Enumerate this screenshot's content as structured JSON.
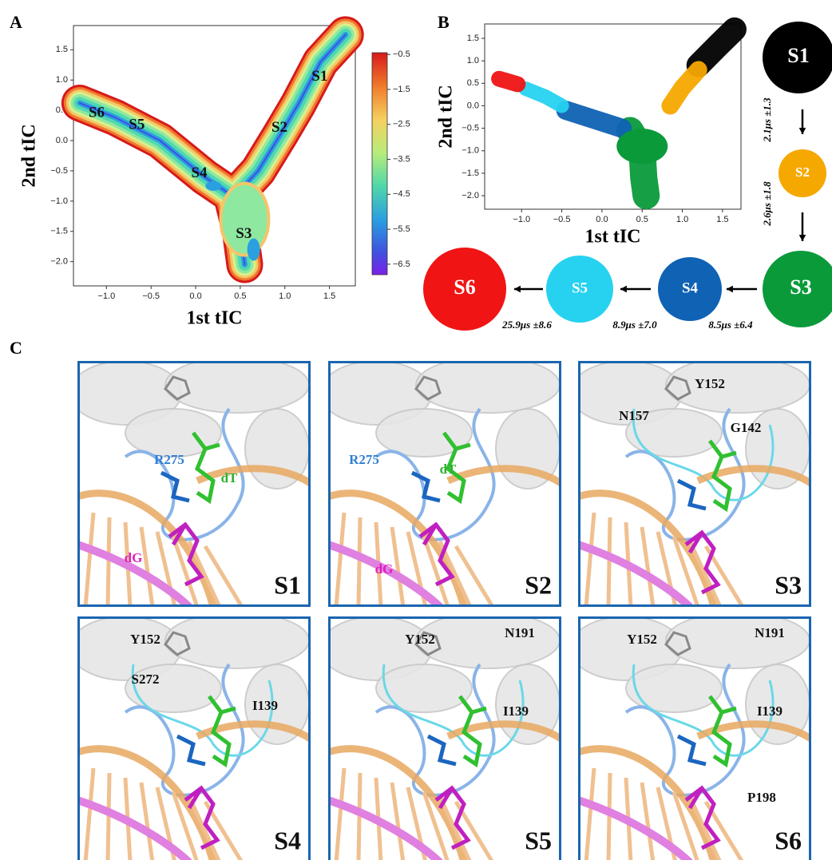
{
  "panel_a": {
    "label": "A",
    "xlabel": "1st tIC",
    "ylabel": "2nd tIC",
    "xlim": [
      -1.37,
      1.79
    ],
    "ylim": [
      -2.4,
      1.9
    ],
    "xticks": [
      {
        "value": -1.0,
        "label": "−1.0"
      },
      {
        "value": -0.5,
        "label": "−0.5"
      },
      {
        "value": 0.0,
        "label": "0.0"
      },
      0.5,
      {
        "value": 1.0,
        "label": "1.0"
      },
      1.5
    ],
    "yticks": [
      {
        "value": -2.0,
        "label": "−2.0"
      },
      {
        "value": -1.5,
        "label": "−1.5"
      },
      {
        "value": -1.0,
        "label": "−1.0"
      },
      {
        "value": -0.5,
        "label": "−0.5"
      },
      {
        "value": 0.0,
        "label": "0.0"
      },
      0.5,
      {
        "value": 1.0,
        "label": "1.0"
      },
      1.5
    ],
    "clim": [
      -6.8,
      -0.45
    ],
    "cticks": [
      {
        "value": -0.5,
        "label": "−0.5"
      },
      {
        "value": -1.5,
        "label": "−1.5"
      },
      {
        "value": -2.5,
        "label": "−2.5"
      },
      {
        "value": -3.5,
        "label": "−3.5"
      },
      {
        "value": -4.5,
        "label": "−4.5"
      },
      {
        "value": -5.5,
        "label": "−5.5"
      },
      {
        "value": -6.5,
        "label": "−6.5"
      }
    ],
    "states": [
      "S1",
      "S2",
      "S3",
      "S4",
      "S5",
      "S6"
    ]
  },
  "panel_b": {
    "label": "B",
    "xlabel": "1st tIC",
    "ylabel": "2nd tIC",
    "xlim": [
      -1.46,
      1.73
    ],
    "ylim": [
      -2.3,
      1.82
    ],
    "xticks": [
      {
        "value": -1.0,
        "label": "−1.0"
      },
      {
        "value": -0.5,
        "label": "−0.5"
      },
      {
        "value": 0.0,
        "label": "0.0"
      },
      0.5,
      {
        "value": 1.0,
        "label": "1.0"
      },
      1.5
    ],
    "yticks": [
      {
        "value": -2.0,
        "label": "−2.0"
      },
      {
        "value": -1.5,
        "label": "−1.5"
      },
      {
        "value": -1.0,
        "label": "−1.0"
      },
      {
        "value": -0.5,
        "label": "−0.5"
      },
      {
        "value": 0.0,
        "label": "0.0"
      },
      0.5,
      {
        "value": 1.0,
        "label": "1.0"
      },
      1.5
    ],
    "states": [
      {
        "name": "S1",
        "color": "#000000"
      },
      {
        "name": "S2",
        "color": "#f5a800"
      },
      {
        "name": "S3",
        "color": "#0a9a3a"
      },
      {
        "name": "S4",
        "color": "#0f62b4"
      },
      {
        "name": "S5",
        "color": "#26d2f0"
      },
      {
        "name": "S6",
        "color": "#f01414"
      }
    ],
    "transitions": [
      "2.1μs ±1.3",
      "2.6μs ±1.8",
      "8.5μs ±6.4",
      "8.9μs ±7.0",
      "25.9μs ±8.6"
    ]
  },
  "panel_c": {
    "label": "C",
    "panels": [
      {
        "state": "S1",
        "labels": [
          {
            "text": "R275",
            "color": "#2f7fd1"
          },
          {
            "text": "dT",
            "color": "#30b030"
          },
          {
            "text": "dG",
            "color": "#e020c0"
          }
        ]
      },
      {
        "state": "S2",
        "labels": [
          {
            "text": "R275",
            "color": "#2f7fd1"
          },
          {
            "text": "dT",
            "color": "#30b030"
          },
          {
            "text": "dG",
            "color": "#e020c0"
          }
        ]
      },
      {
        "state": "S3",
        "labels": [
          {
            "text": "Y152",
            "color": "#111111"
          },
          {
            "text": "N157",
            "color": "#111111"
          },
          {
            "text": "G142",
            "color": "#111111"
          }
        ]
      },
      {
        "state": "S4",
        "labels": [
          {
            "text": "Y152",
            "color": "#111111"
          },
          {
            "text": "S272",
            "color": "#111111"
          },
          {
            "text": "I139",
            "color": "#111111"
          }
        ]
      },
      {
        "state": "S5",
        "labels": [
          {
            "text": "Y152",
            "color": "#111111"
          },
          {
            "text": "N191",
            "color": "#111111"
          },
          {
            "text": "I139",
            "color": "#111111"
          }
        ]
      },
      {
        "state": "S6",
        "labels": [
          {
            "text": "Y152",
            "color": "#111111"
          },
          {
            "text": "N191",
            "color": "#111111"
          },
          {
            "text": "I139",
            "color": "#111111"
          },
          {
            "text": "P198",
            "color": "#111111"
          }
        ]
      }
    ]
  }
}
